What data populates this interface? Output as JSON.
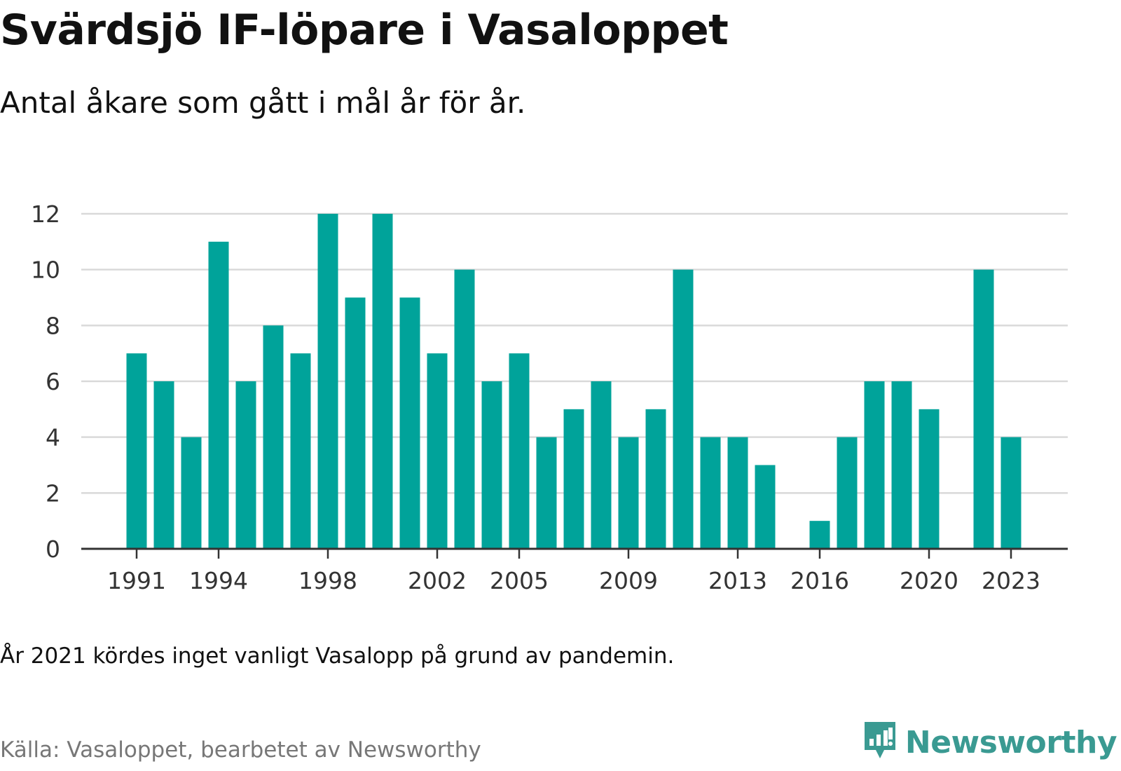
{
  "title": "Svärdsjö IF-löpare i Vasaloppet",
  "subtitle": "Antal åkare som gått i mål år för år.",
  "note": "År 2021 kördes inget vanligt Vasalopp på grund av pandemin.",
  "source": "Källa: Vasaloppet, bearbetet av Newsworthy",
  "brand": {
    "name": "Newsworthy",
    "icon": "newsworthy-logo-icon",
    "color": "#3a9a92"
  },
  "colors": {
    "bar": "#00a39a",
    "grid": "#d9d9d9",
    "axis": "#333333",
    "tick_text": "#333333"
  },
  "chart_data": {
    "type": "bar",
    "title": "Svärdsjö IF-löpare i Vasaloppet",
    "subtitle": "Antal åkare som gått i mål år för år.",
    "xlabel": "",
    "ylabel": "",
    "categories": [
      1991,
      1992,
      1993,
      1994,
      1995,
      1996,
      1997,
      1998,
      1999,
      2000,
      2001,
      2002,
      2003,
      2004,
      2005,
      2006,
      2007,
      2008,
      2009,
      2010,
      2011,
      2012,
      2013,
      2014,
      2015,
      2016,
      2017,
      2018,
      2019,
      2020,
      2021,
      2022,
      2023
    ],
    "values": [
      7,
      6,
      4,
      11,
      6,
      8,
      7,
      12,
      9,
      12,
      9,
      7,
      10,
      6,
      7,
      4,
      5,
      6,
      4,
      5,
      10,
      4,
      4,
      3,
      0,
      1,
      4,
      6,
      6,
      5,
      0,
      10,
      4
    ],
    "x_tick_labels": [
      "1991",
      "1994",
      "1998",
      "2002",
      "2005",
      "2009",
      "2013",
      "2016",
      "2020",
      "2023"
    ],
    "y_ticks": [
      0,
      2,
      4,
      6,
      8,
      10,
      12
    ],
    "ylim": [
      0,
      12
    ],
    "grid": true
  }
}
